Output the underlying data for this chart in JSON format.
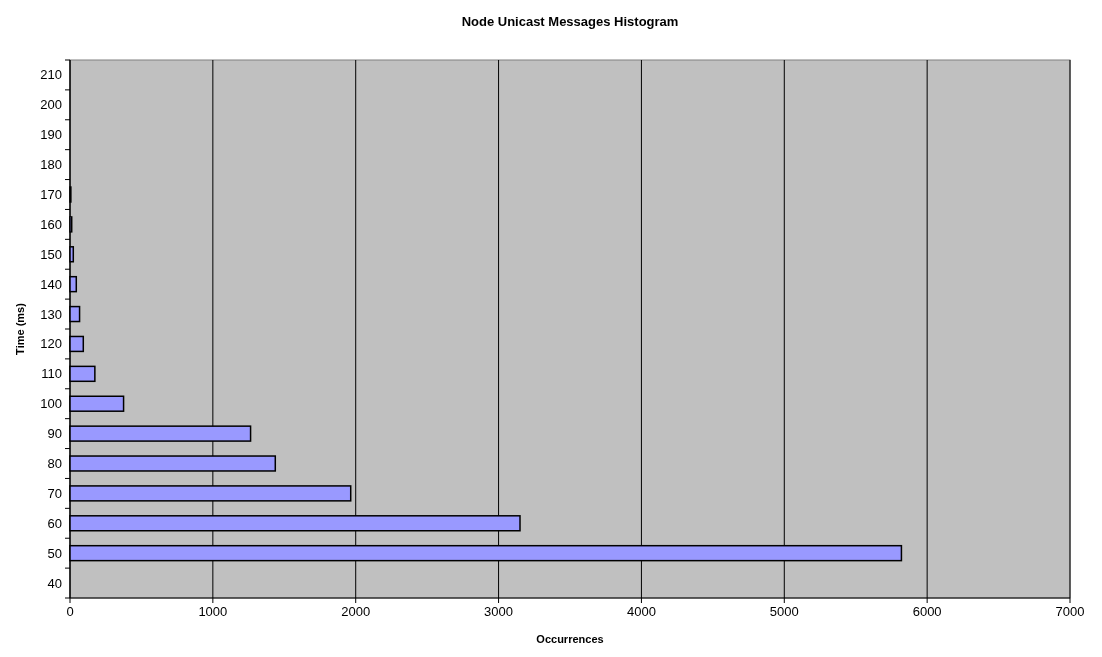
{
  "chart_data": {
    "type": "bar",
    "orientation": "horizontal",
    "title": "Node Unicast Messages Histogram",
    "xlabel": "Occurrences",
    "ylabel": "Time (ms)",
    "categories": [
      "210",
      "200",
      "190",
      "180",
      "170",
      "160",
      "150",
      "140",
      "130",
      "120",
      "110",
      "100",
      "90",
      "80",
      "70",
      "60",
      "50",
      "40"
    ],
    "values": [
      0,
      0,
      0,
      0,
      6,
      12,
      23,
      44,
      67,
      93,
      174,
      375,
      1264,
      1437,
      1965,
      3150,
      5820,
      0
    ],
    "color": "#9999ff",
    "xlim": [
      0,
      7000
    ],
    "xticks": [
      0,
      1000,
      2000,
      3000,
      4000,
      5000,
      6000,
      7000
    ],
    "grid": "x"
  }
}
